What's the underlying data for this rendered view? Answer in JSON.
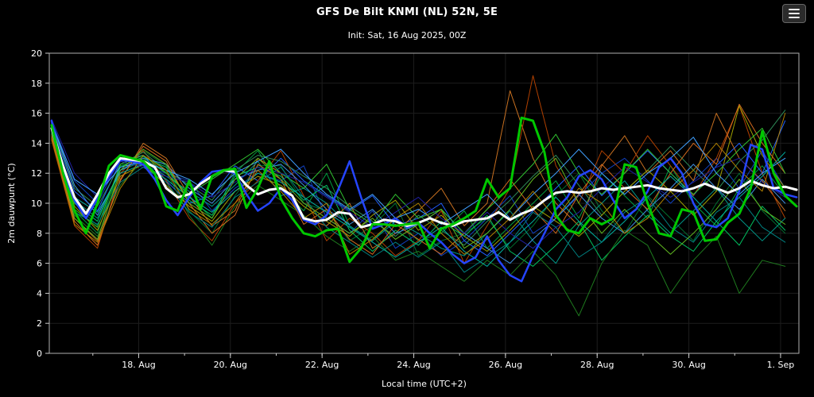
{
  "header": {
    "title": "GFS De Bilt KNMI (NL) 52N, 5E",
    "subtitle": "Init: Sat, 16 Aug 2025, 00Z",
    "menu_icon": "hamburger-icon"
  },
  "chart_data": {
    "type": "line",
    "title": "GFS De Bilt KNMI (NL) 52N, 5E",
    "subtitle": "Init: Sat, 16 Aug 2025, 00Z",
    "xlabel": "Local time (UTC+2)",
    "ylabel": "2m dauwpunt (°C)",
    "ylim": [
      0,
      20
    ],
    "y_ticks": [
      0,
      2,
      4,
      6,
      8,
      10,
      12,
      14,
      16,
      18,
      20
    ],
    "x_domain": [
      16.05,
      32.4
    ],
    "x_minor_step_days": 1,
    "x_ticks": [
      {
        "x": 18,
        "label": "18. Aug"
      },
      {
        "x": 20,
        "label": "20. Aug"
      },
      {
        "x": 22,
        "label": "22. Aug"
      },
      {
        "x": 24,
        "label": "24. Aug"
      },
      {
        "x": 26,
        "label": "26. Aug"
      },
      {
        "x": 28,
        "label": "28. Aug"
      },
      {
        "x": 30,
        "label": "30. Aug"
      },
      {
        "x": 32,
        "label": "1. Sep"
      }
    ],
    "grid": true,
    "legend": "none",
    "background": "#000000",
    "frame_color": "#b0b0b0",
    "series": [
      {
        "name": "ensemble-member-01",
        "color": "#00a040",
        "width": 1,
        "x0": 16.1,
        "dx": 0.5,
        "values": [
          15.0,
          9.5,
          8.0,
          12.5,
          13.0,
          12.0,
          10.5,
          9.0,
          12.0,
          13.5,
          11.0,
          9.5,
          12.0,
          8.5,
          7.5,
          9.0,
          7.5,
          8.0,
          9.5,
          7.0,
          8.5,
          10.0,
          11.5,
          9.0,
          12.0,
          10.5,
          9.0,
          12.5,
          10.0,
          8.5,
          11.0,
          12.5,
          10.5
        ]
      },
      {
        "name": "ensemble-member-02",
        "color": "#007030",
        "width": 1,
        "x0": 16.1,
        "dx": 0.5,
        "values": [
          14.8,
          10.0,
          8.5,
          12.0,
          13.5,
          12.5,
          9.5,
          8.0,
          10.5,
          12.5,
          12.5,
          10.0,
          9.5,
          7.5,
          8.5,
          10.0,
          6.5,
          7.5,
          8.0,
          9.0,
          7.0,
          8.5,
          10.5,
          12.0,
          9.5,
          8.0,
          10.5,
          9.0,
          7.5,
          10.0,
          12.0,
          9.5,
          8.0
        ]
      },
      {
        "name": "ensemble-member-03",
        "color": "#2060ff",
        "width": 1,
        "x0": 16.1,
        "dx": 0.5,
        "values": [
          15.2,
          10.8,
          9.5,
          12.8,
          13.2,
          11.5,
          10.0,
          10.5,
          12.5,
          11.5,
          13.0,
          11.5,
          10.5,
          9.5,
          10.5,
          8.5,
          9.0,
          10.0,
          7.5,
          6.5,
          8.0,
          9.5,
          11.0,
          12.5,
          10.5,
          12.0,
          13.5,
          12.0,
          10.5,
          12.5,
          14.0,
          12.0,
          15.5
        ]
      },
      {
        "name": "ensemble-member-04",
        "color": "#1040c0",
        "width": 1,
        "x0": 16.1,
        "dx": 0.5,
        "values": [
          15.5,
          11.5,
          10.0,
          13.0,
          12.5,
          12.0,
          11.5,
          9.5,
          11.0,
          12.0,
          11.5,
          12.5,
          9.0,
          8.0,
          9.5,
          7.0,
          8.0,
          6.5,
          7.5,
          9.0,
          10.5,
          8.0,
          9.0,
          10.5,
          12.0,
          13.0,
          11.5,
          10.0,
          11.5,
          13.0,
          11.0,
          13.5,
          11.0
        ]
      },
      {
        "name": "ensemble-member-05",
        "color": "#c87020",
        "width": 1,
        "x0": 16.1,
        "dx": 0.5,
        "values": [
          14.5,
          9.0,
          7.5,
          11.5,
          14.0,
          13.0,
          10.5,
          8.5,
          9.5,
          13.0,
          12.0,
          9.0,
          8.5,
          10.0,
          7.0,
          8.0,
          9.5,
          11.0,
          8.5,
          10.0,
          17.5,
          13.0,
          10.0,
          8.5,
          12.5,
          14.5,
          12.0,
          13.5,
          11.5,
          16.0,
          13.0,
          11.5,
          9.5
        ]
      },
      {
        "name": "ensemble-member-06",
        "color": "#b04000",
        "width": 1,
        "x0": 16.1,
        "dx": 0.5,
        "values": [
          14.2,
          8.5,
          7.0,
          12.0,
          13.5,
          11.5,
          9.0,
          7.5,
          10.0,
          11.5,
          13.5,
          10.5,
          7.5,
          9.0,
          8.0,
          6.5,
          7.5,
          9.5,
          6.0,
          8.5,
          11.0,
          18.5,
          12.5,
          10.0,
          13.5,
          12.0,
          14.5,
          12.5,
          10.5,
          13.0,
          16.5,
          12.0,
          9.0
        ]
      },
      {
        "name": "ensemble-member-07",
        "color": "#009688",
        "width": 1,
        "x0": 16.1,
        "dx": 0.5,
        "values": [
          15.0,
          10.2,
          9.0,
          12.2,
          12.8,
          11.8,
          10.8,
          9.8,
          11.2,
          12.8,
          10.5,
          11.0,
          10.0,
          8.5,
          7.5,
          8.8,
          8.0,
          7.0,
          6.5,
          8.0,
          9.5,
          7.5,
          6.0,
          8.5,
          10.0,
          11.5,
          9.5,
          8.0,
          9.5,
          11.0,
          9.0,
          7.5,
          9.0
        ]
      },
      {
        "name": "ensemble-member-08",
        "color": "#2e8b57",
        "width": 1,
        "x0": 16.1,
        "dx": 0.5,
        "values": [
          15.3,
          11.0,
          9.8,
          12.6,
          13.4,
          12.2,
          11.2,
          10.2,
          12.2,
          13.2,
          12.8,
          11.8,
          11.0,
          9.8,
          8.8,
          7.8,
          9.2,
          8.2,
          7.2,
          8.8,
          10.2,
          11.8,
          13.2,
          11.2,
          9.2,
          10.8,
          12.2,
          13.8,
          12.2,
          10.8,
          12.8,
          14.2,
          16.2
        ]
      },
      {
        "name": "ensemble-member-09",
        "color": "#a0a000",
        "width": 1,
        "x0": 16.1,
        "dx": 0.5,
        "values": [
          14.6,
          9.8,
          8.2,
          11.8,
          12.6,
          11.2,
          9.8,
          8.8,
          10.8,
          11.8,
          11.2,
          9.8,
          8.8,
          7.8,
          9.2,
          10.2,
          8.2,
          9.2,
          7.8,
          6.8,
          8.2,
          9.8,
          8.8,
          7.8,
          9.2,
          10.8,
          12.2,
          10.8,
          9.2,
          10.8,
          16.5,
          13.2,
          11.0
        ]
      },
      {
        "name": "ensemble-member-10",
        "color": "#00c060",
        "width": 1,
        "x0": 16.1,
        "dx": 0.5,
        "values": [
          15.1,
          10.0,
          8.8,
          12.4,
          13.1,
          12.4,
          10.2,
          9.2,
          11.8,
          12.4,
          11.8,
          10.2,
          11.2,
          8.2,
          6.8,
          8.2,
          7.2,
          8.8,
          7.8,
          9.2,
          6.8,
          5.8,
          7.2,
          8.8,
          6.2,
          7.8,
          9.2,
          7.8,
          6.8,
          8.8,
          7.2,
          9.8,
          8.2
        ]
      },
      {
        "name": "ensemble-member-11",
        "color": "#1e7a1e",
        "width": 1,
        "x0": 16.1,
        "dx": 0.5,
        "values": [
          14.9,
          9.2,
          7.8,
          11.2,
          12.9,
          12.1,
          9.2,
          7.2,
          9.8,
          11.2,
          10.2,
          9.2,
          7.8,
          6.8,
          7.8,
          6.2,
          6.8,
          5.8,
          4.8,
          6.2,
          5.2,
          6.8,
          5.2,
          2.5,
          6.0,
          8.2,
          7.2,
          4.0,
          6.2,
          7.8,
          4.0,
          6.2,
          5.8
        ]
      },
      {
        "name": "ensemble-member-12",
        "color": "#4090e0",
        "width": 1,
        "x0": 16.1,
        "dx": 0.5,
        "values": [
          15.4,
          11.2,
          9.2,
          12.2,
          13.0,
          12.6,
          11.0,
          10.0,
          11.6,
          12.2,
          12.6,
          11.2,
          9.6,
          8.6,
          9.6,
          8.0,
          8.6,
          9.6,
          8.0,
          7.0,
          6.0,
          7.6,
          9.0,
          10.6,
          9.0,
          8.0,
          9.6,
          11.0,
          12.6,
          11.0,
          9.6,
          11.6,
          10.0
        ]
      },
      {
        "name": "ensemble-member-13",
        "color": "#d2691e",
        "width": 1,
        "x0": 16.1,
        "dx": 0.5,
        "values": [
          14.4,
          8.8,
          7.2,
          11.6,
          13.8,
          12.8,
          10.0,
          8.0,
          9.2,
          12.6,
          11.6,
          8.6,
          9.6,
          7.6,
          6.6,
          8.6,
          7.6,
          6.6,
          8.0,
          9.6,
          11.6,
          9.6,
          8.0,
          10.6,
          12.6,
          11.0,
          9.6,
          12.0,
          14.0,
          12.6,
          16.6,
          14.0,
          12.0
        ]
      },
      {
        "name": "ensemble-member-14",
        "color": "#00b0a0",
        "width": 1,
        "x0": 16.1,
        "dx": 0.5,
        "values": [
          15.0,
          10.4,
          9.4,
          12.0,
          12.6,
          11.6,
          10.4,
          9.4,
          10.8,
          12.0,
          11.4,
          10.4,
          9.4,
          8.4,
          7.4,
          6.4,
          7.4,
          8.4,
          6.8,
          5.8,
          7.4,
          8.8,
          10.4,
          8.8,
          7.4,
          8.8,
          10.4,
          11.8,
          10.4,
          8.8,
          10.4,
          11.8,
          13.4
        ]
      },
      {
        "name": "ensemble-member-15",
        "color": "#30c030",
        "width": 1,
        "x0": 16.1,
        "dx": 0.5,
        "values": [
          15.2,
          9.6,
          8.4,
          12.6,
          13.2,
          12.0,
          10.6,
          11.6,
          12.6,
          13.6,
          12.0,
          11.0,
          12.6,
          9.6,
          8.6,
          10.6,
          9.0,
          9.6,
          8.0,
          9.6,
          11.0,
          12.6,
          14.6,
          12.0,
          10.6,
          12.0,
          13.6,
          12.0,
          10.6,
          12.0,
          13.6,
          15.0,
          12.0
        ]
      },
      {
        "name": "ensemble-member-16",
        "color": "#2020a0",
        "width": 1,
        "x0": 16.1,
        "dx": 0.5,
        "values": [
          15.6,
          12.0,
          10.4,
          12.8,
          12.4,
          11.8,
          11.4,
          10.4,
          11.4,
          12.4,
          12.0,
          11.4,
          10.4,
          9.4,
          8.4,
          9.4,
          10.4,
          9.0,
          8.0,
          9.4,
          8.0,
          7.0,
          8.4,
          9.4,
          11.0,
          12.4,
          11.4,
          10.4,
          11.4,
          12.4,
          13.0,
          11.4,
          10.4
        ]
      },
      {
        "name": "ensemble-member-17",
        "color": "#008080",
        "width": 1,
        "x0": 16.1,
        "dx": 0.5,
        "values": [
          14.7,
          9.4,
          8.6,
          11.4,
          12.4,
          11.4,
          9.4,
          8.4,
          10.4,
          11.4,
          12.4,
          10.4,
          8.4,
          7.4,
          6.4,
          7.4,
          6.4,
          7.4,
          5.4,
          6.4,
          7.4,
          9.4,
          8.4,
          6.4,
          7.4,
          9.4,
          10.4,
          8.4,
          7.4,
          9.4,
          10.4,
          8.4,
          7.4
        ]
      },
      {
        "name": "ensemble-member-18",
        "color": "#40a0ff",
        "width": 1,
        "x0": 16.1,
        "dx": 0.5,
        "values": [
          15.3,
          11.6,
          10.6,
          12.4,
          12.8,
          12.2,
          11.6,
          10.6,
          12.0,
          12.8,
          13.6,
          12.0,
          10.6,
          9.6,
          10.6,
          9.0,
          9.6,
          8.6,
          9.6,
          10.6,
          9.0,
          10.6,
          12.0,
          13.6,
          12.0,
          10.6,
          12.0,
          13.0,
          14.4,
          12.0,
          10.6,
          12.0,
          13.0
        ]
      },
      {
        "name": "ensemble-member-19",
        "color": "#60b820",
        "width": 1,
        "x0": 16.1,
        "dx": 0.5,
        "values": [
          14.8,
          9.0,
          7.6,
          12.2,
          13.6,
          12.6,
          10.0,
          9.0,
          11.6,
          13.0,
          11.6,
          10.0,
          9.0,
          8.0,
          9.0,
          7.6,
          8.6,
          9.6,
          7.0,
          8.0,
          9.6,
          11.6,
          13.0,
          10.0,
          8.0,
          9.6,
          8.0,
          6.6,
          8.0,
          9.6,
          11.6,
          9.6,
          8.6
        ]
      },
      {
        "name": "ensemble-member-20",
        "color": "#b08000",
        "width": 1,
        "x0": 16.1,
        "dx": 0.5,
        "values": [
          14.3,
          8.6,
          7.4,
          11.0,
          13.2,
          12.2,
          9.6,
          8.6,
          10.0,
          12.2,
          10.8,
          9.0,
          10.0,
          6.6,
          7.6,
          9.0,
          10.0,
          8.0,
          6.6,
          7.6,
          9.0,
          10.8,
          9.0,
          11.0,
          10.0,
          8.0,
          9.0,
          10.8,
          12.2,
          14.0,
          12.2,
          10.8,
          16.0
        ]
      },
      {
        "name": "control-run-blue",
        "color": "#2545ff",
        "width": 2.5,
        "x0": 16.1,
        "dx": 0.25,
        "values": [
          15.5,
          12.2,
          10.2,
          9.0,
          10.3,
          11.8,
          12.9,
          12.8,
          12.6,
          11.6,
          10.2,
          9.2,
          10.4,
          11.4,
          12.1,
          12.2,
          12.0,
          10.6,
          9.5,
          10.0,
          11.0,
          10.2,
          8.9,
          8.6,
          9.2,
          10.9,
          12.8,
          10.4,
          8.3,
          8.6,
          9.0,
          8.4,
          8.7,
          8.0,
          7.4,
          6.6,
          6.0,
          6.4,
          7.8,
          6.2,
          5.2,
          4.8,
          6.5,
          8.0,
          9.6,
          10.4,
          11.8,
          12.2,
          11.6,
          10.2,
          9.0,
          9.6,
          10.8,
          12.4,
          13.0,
          12.0,
          10.0,
          8.6,
          8.4,
          9.0,
          10.8,
          13.9,
          13.6,
          11.0,
          10.6,
          10.4
        ]
      },
      {
        "name": "ensemble-mean-white",
        "color": "#ffffff",
        "width": 3,
        "x0": 16.1,
        "dx": 0.25,
        "values": [
          15.0,
          12.5,
          10.4,
          9.3,
          10.6,
          12.0,
          13.0,
          12.9,
          12.8,
          12.4,
          11.0,
          10.4,
          10.6,
          11.3,
          11.8,
          12.2,
          12.1,
          11.2,
          10.6,
          10.9,
          11.0,
          10.5,
          9.0,
          8.8,
          8.9,
          9.4,
          9.3,
          8.4,
          8.6,
          8.9,
          8.8,
          8.5,
          8.7,
          9.0,
          8.7,
          8.5,
          8.8,
          8.9,
          9.0,
          9.4,
          8.9,
          9.3,
          9.6,
          10.2,
          10.7,
          10.8,
          10.7,
          10.8,
          11.0,
          10.9,
          11.0,
          11.1,
          11.2,
          11.0,
          10.9,
          10.8,
          11.0,
          11.3,
          11.0,
          10.7,
          11.0,
          11.5,
          11.2,
          11.0,
          11.1,
          10.9
        ]
      },
      {
        "name": "operational-run-green",
        "color": "#00c800",
        "width": 3,
        "x0": 16.1,
        "dx": 0.25,
        "values": [
          15.2,
          12.0,
          9.5,
          8.0,
          10.0,
          12.5,
          13.2,
          13.0,
          12.8,
          12.0,
          9.8,
          9.5,
          11.5,
          9.6,
          11.8,
          12.2,
          12.3,
          9.7,
          11.0,
          12.8,
          10.3,
          9.0,
          8.0,
          7.8,
          8.2,
          8.3,
          6.1,
          7.0,
          8.6,
          8.6,
          8.5,
          8.6,
          8.7,
          7.0,
          8.3,
          8.6,
          9.0,
          9.5,
          11.6,
          10.4,
          11.0,
          15.7,
          15.5,
          13.4,
          9.2,
          8.2,
          8.0,
          9.0,
          8.6,
          9.0,
          12.6,
          12.4,
          10.0,
          8.0,
          7.8,
          9.6,
          9.4,
          7.5,
          7.6,
          8.7,
          9.3,
          11.0,
          14.8,
          12.0,
          10.5,
          9.8
        ]
      }
    ]
  }
}
